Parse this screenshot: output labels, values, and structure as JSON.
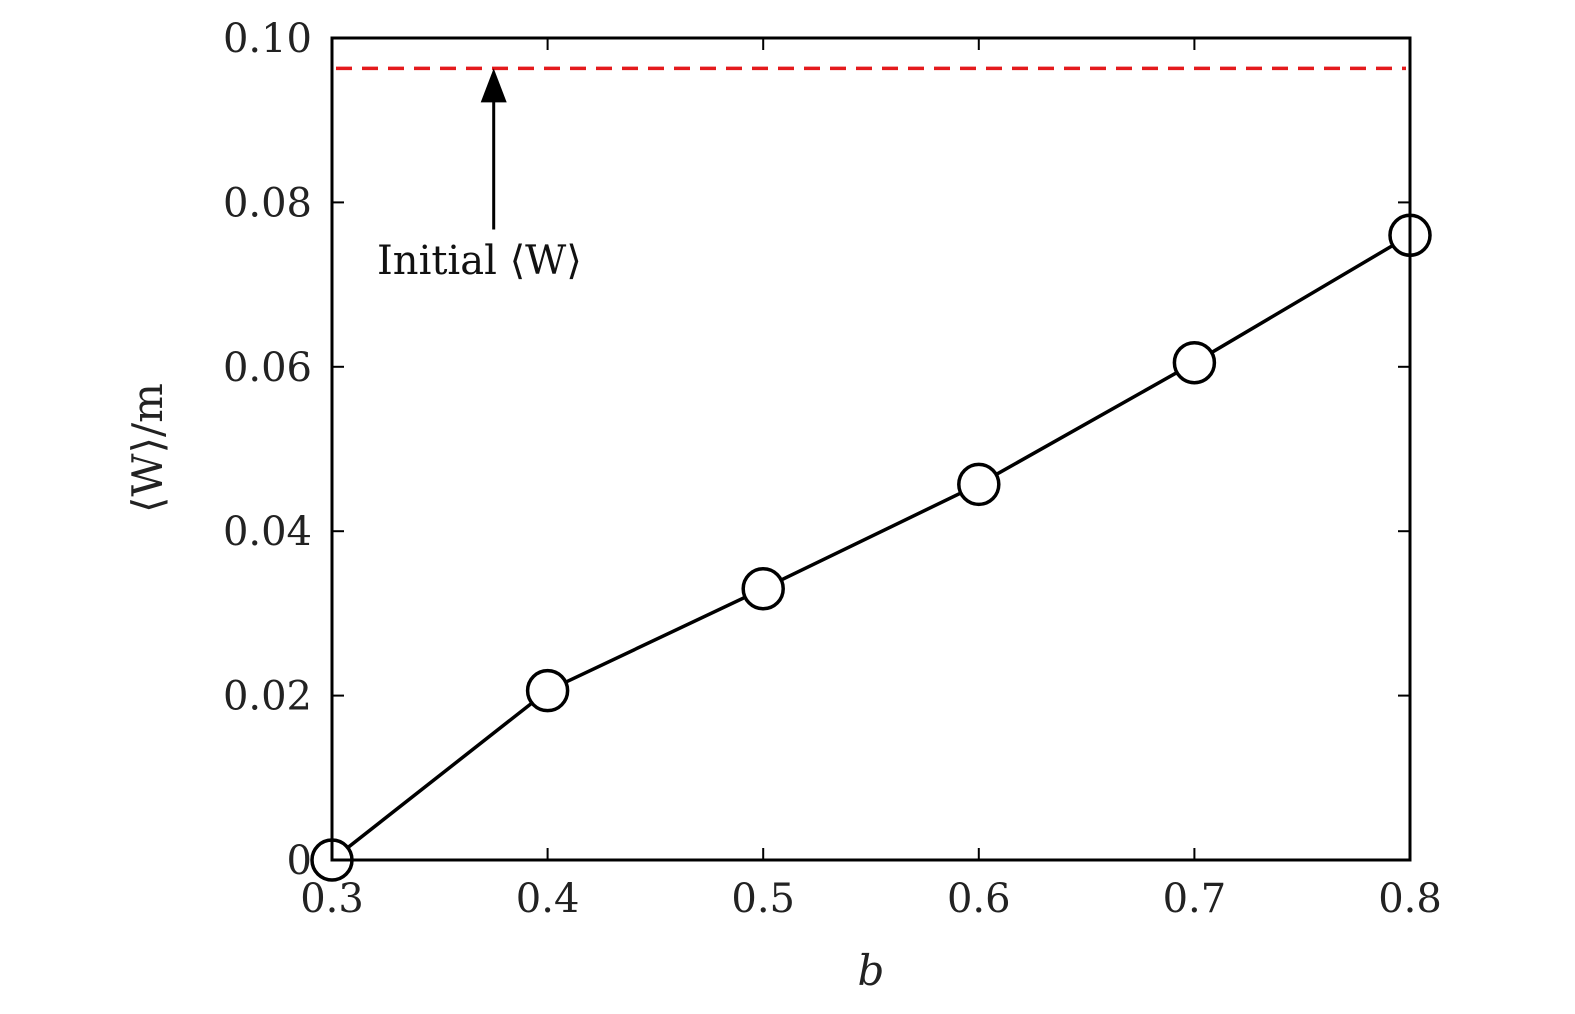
{
  "chart_data": {
    "type": "line",
    "title": "",
    "xlabel": "b",
    "ylabel": "⟨W⟩/m",
    "xlim": [
      0.3,
      0.8
    ],
    "ylim": [
      0,
      0.1
    ],
    "x_ticks": [
      0.3,
      0.4,
      0.5,
      0.6,
      0.7,
      0.8
    ],
    "x_tick_labels": [
      "0.3",
      "0.4",
      "0.5",
      "0.6",
      "0.7",
      "0.8"
    ],
    "y_ticks": [
      0,
      0.02,
      0.04,
      0.06,
      0.08,
      0.1
    ],
    "y_tick_labels": [
      "0",
      "0.02",
      "0.04",
      "0.06",
      "0.08",
      "0.10"
    ],
    "grid": false,
    "legend": "none",
    "series": [
      {
        "x": [
          0.3,
          0.4,
          0.5,
          0.6,
          0.7,
          0.8
        ],
        "values": [
          0.0,
          0.0206,
          0.033,
          0.0457,
          0.0605,
          0.076
        ],
        "color": "#000000",
        "marker": "open-circle",
        "line": "solid"
      }
    ],
    "reference_line": {
      "y": 0.0963,
      "color": "#e41a1c",
      "style": "dashed"
    },
    "annotation": {
      "text": "Initial ⟨W⟩",
      "arrow_x": 0.375,
      "arrow_from_y": 0.0767,
      "arrow_to_y": 0.0963
    }
  }
}
